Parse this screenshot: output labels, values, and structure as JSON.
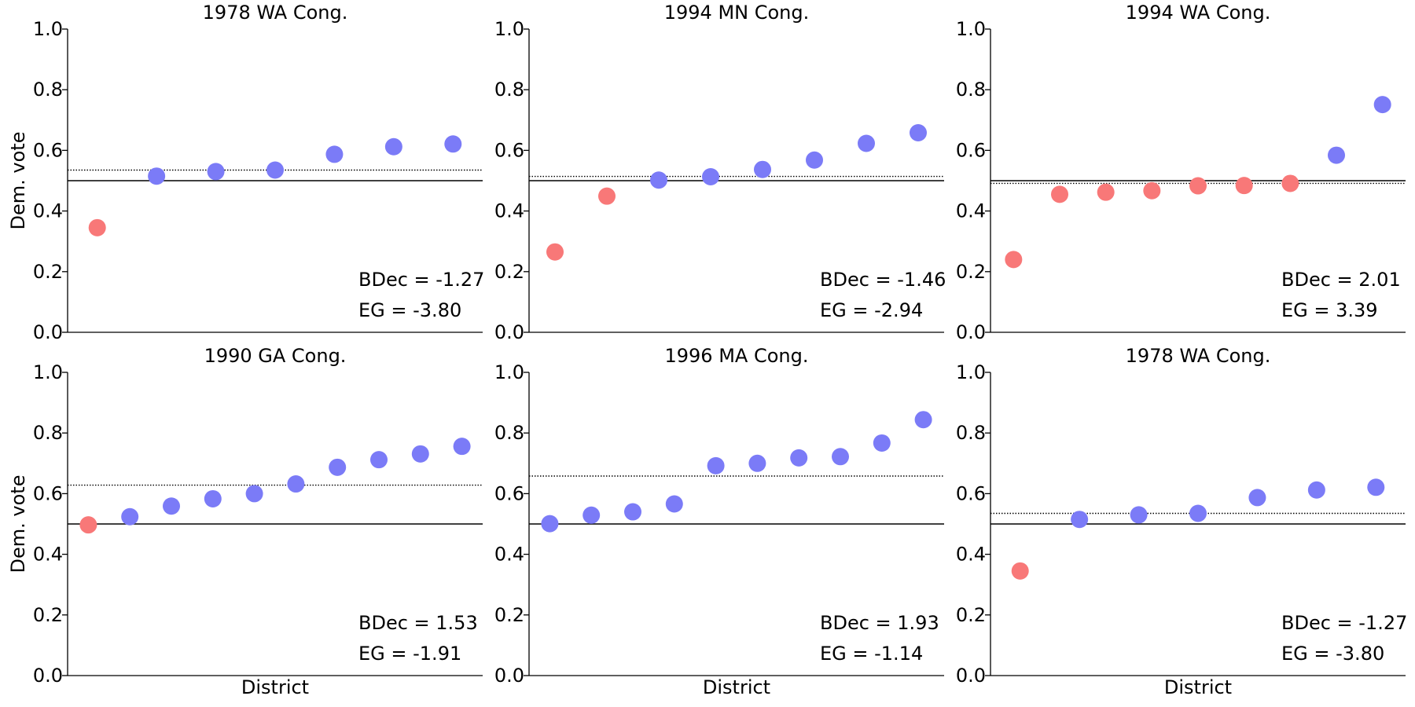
{
  "figure": {
    "colors": {
      "dem": "#7B7BF7",
      "rep": "#F87878",
      "axis": "#000000"
    },
    "yticks": [
      "0.0",
      "0.2",
      "0.4",
      "0.6",
      "0.8",
      "1.0"
    ]
  },
  "chart_data": [
    {
      "type": "scatter",
      "title": "1978 WA Cong.",
      "ylabel": "Dem. vote",
      "xlabel": "",
      "ylim": [
        0,
        1
      ],
      "values": [
        0.345,
        0.515,
        0.53,
        0.535,
        0.587,
        0.612,
        0.621
      ],
      "mean_line": 0.535,
      "half_line": 0.5,
      "bdec": "BDec = -1.27",
      "eg": "EG = -3.80"
    },
    {
      "type": "scatter",
      "title": "1994 MN Cong.",
      "ylabel": "",
      "xlabel": "",
      "ylim": [
        0,
        1
      ],
      "values": [
        0.265,
        0.449,
        0.502,
        0.513,
        0.537,
        0.568,
        0.623,
        0.658
      ],
      "mean_line": 0.514,
      "half_line": 0.5,
      "bdec": "BDec = -1.46",
      "eg": "EG = -2.94"
    },
    {
      "type": "scatter",
      "title": "1994 WA Cong.",
      "ylabel": "",
      "xlabel": "",
      "ylim": [
        0,
        1
      ],
      "values": [
        0.24,
        0.455,
        0.462,
        0.467,
        0.483,
        0.484,
        0.491,
        0.584,
        0.751
      ],
      "mean_line": 0.491,
      "half_line": 0.5,
      "bdec": "BDec = 2.01",
      "eg": "EG = 3.39"
    },
    {
      "type": "scatter",
      "title": "1990 GA Cong.",
      "ylabel": "Dem. vote",
      "xlabel": "District",
      "ylim": [
        0,
        1
      ],
      "values": [
        0.497,
        0.524,
        0.559,
        0.583,
        0.6,
        0.632,
        0.687,
        0.712,
        0.731,
        0.756
      ],
      "mean_line": 0.628,
      "half_line": 0.5,
      "bdec": "BDec = 1.53",
      "eg": "EG = -1.91"
    },
    {
      "type": "scatter",
      "title": "1996 MA Cong.",
      "ylabel": "",
      "xlabel": "District",
      "ylim": [
        0,
        1
      ],
      "values": [
        0.501,
        0.529,
        0.54,
        0.566,
        0.692,
        0.7,
        0.718,
        0.722,
        0.767,
        0.844
      ],
      "mean_line": 0.658,
      "half_line": 0.5,
      "bdec": "BDec = 1.93",
      "eg": "EG = -1.14"
    },
    {
      "type": "scatter",
      "title": "1978 WA Cong.",
      "ylabel": "",
      "xlabel": "District",
      "ylim": [
        0,
        1
      ],
      "values": [
        0.345,
        0.515,
        0.53,
        0.535,
        0.587,
        0.612,
        0.621
      ],
      "mean_line": 0.535,
      "half_line": 0.5,
      "bdec": "BDec = -1.27",
      "eg": "EG = -3.80"
    }
  ]
}
